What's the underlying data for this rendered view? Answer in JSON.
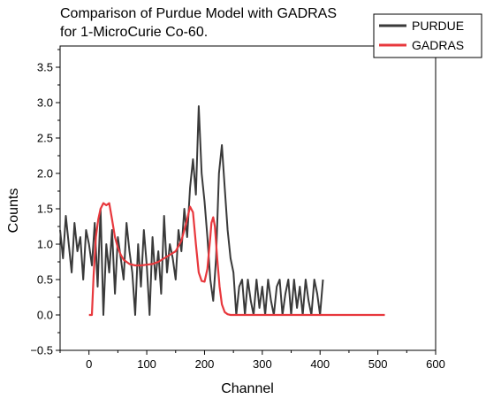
{
  "chart_data": {
    "type": "line",
    "title_lines": [
      "Comparison of Purdue Model with GADRAS",
      "for 1-MicroCurie Co-60."
    ],
    "xlabel": "Channel",
    "ylabel": "Counts",
    "xlim": [
      -50,
      600
    ],
    "ylim": [
      -0.5,
      3.8
    ],
    "x_ticks": [
      0,
      100,
      200,
      300,
      400,
      500,
      600
    ],
    "y_ticks": [
      -0.5,
      0.0,
      0.5,
      1.0,
      1.5,
      2.0,
      2.5,
      3.0,
      3.5
    ],
    "x_tick_labels": [
      "0",
      "100",
      "200",
      "300",
      "400",
      "500",
      "600"
    ],
    "y_tick_labels": [
      "−0.5",
      "0.0",
      "0.5",
      "1.0",
      "1.5",
      "2.0",
      "2.5",
      "3.0",
      "3.5"
    ],
    "grid": false,
    "legend_position": "top-right",
    "series": [
      {
        "name": "PURDUE",
        "color": "#3a3a3a",
        "x": [
          -50,
          -45,
          -40,
          -35,
          -30,
          -25,
          -20,
          -15,
          -10,
          -5,
          0,
          5,
          10,
          15,
          20,
          25,
          30,
          35,
          40,
          45,
          50,
          55,
          60,
          65,
          70,
          75,
          80,
          85,
          90,
          95,
          100,
          105,
          110,
          115,
          120,
          125,
          130,
          135,
          140,
          145,
          150,
          155,
          160,
          165,
          170,
          175,
          180,
          185,
          190,
          195,
          200,
          205,
          210,
          215,
          220,
          225,
          230,
          235,
          240,
          245,
          250,
          255,
          260,
          265,
          270,
          275,
          280,
          285,
          290,
          295,
          300,
          305,
          310,
          315,
          320,
          325,
          330,
          335,
          340,
          345,
          350,
          355,
          360,
          365,
          370,
          375,
          380,
          385,
          390,
          395,
          400,
          405
        ],
        "y": [
          1.2,
          0.8,
          1.4,
          1.0,
          0.6,
          1.3,
          0.9,
          1.1,
          0.5,
          1.2,
          1.0,
          0.7,
          1.3,
          0.4,
          1.5,
          0.0,
          1.0,
          0.6,
          1.2,
          0.3,
          1.1,
          0.8,
          0.5,
          1.3,
          0.9,
          0.6,
          0.0,
          1.0,
          0.4,
          1.2,
          0.7,
          0.0,
          1.1,
          0.5,
          0.9,
          0.3,
          1.4,
          0.6,
          1.0,
          0.8,
          0.5,
          1.2,
          0.9,
          1.5,
          1.1,
          1.8,
          2.2,
          1.7,
          2.95,
          2.0,
          1.6,
          1.1,
          0.5,
          0.2,
          0.8,
          2.0,
          2.4,
          1.8,
          1.2,
          0.8,
          0.6,
          0.0,
          0.4,
          0.5,
          0.0,
          0.5,
          0.2,
          0.0,
          0.5,
          0.1,
          0.4,
          0.0,
          0.5,
          0.2,
          0.0,
          0.4,
          0.5,
          0.0,
          0.3,
          0.5,
          0.0,
          0.5,
          0.1,
          0.4,
          0.0,
          0.5,
          0.2,
          0.0,
          0.5,
          0.3,
          0.0,
          0.5
        ]
      },
      {
        "name": "GADRAS",
        "color": "#e8383d",
        "x": [
          0,
          5,
          8,
          12,
          16,
          20,
          25,
          30,
          35,
          40,
          45,
          50,
          55,
          60,
          70,
          80,
          90,
          100,
          110,
          120,
          130,
          140,
          150,
          160,
          165,
          170,
          175,
          180,
          185,
          190,
          195,
          200,
          205,
          210,
          212,
          215,
          218,
          222,
          226,
          230,
          235,
          240,
          245,
          260,
          300,
          400,
          512
        ],
        "y": [
          0.0,
          0.0,
          0.55,
          1.1,
          1.35,
          1.5,
          1.58,
          1.55,
          1.58,
          1.35,
          1.1,
          0.95,
          0.85,
          0.78,
          0.72,
          0.7,
          0.7,
          0.71,
          0.72,
          0.75,
          0.8,
          0.85,
          0.9,
          1.05,
          1.2,
          1.35,
          1.53,
          1.45,
          1.0,
          0.6,
          0.48,
          0.47,
          0.65,
          1.1,
          1.3,
          1.38,
          1.25,
          0.8,
          0.4,
          0.15,
          0.04,
          0.01,
          0.0,
          0.0,
          0.0,
          0.0,
          0.0
        ]
      }
    ]
  }
}
